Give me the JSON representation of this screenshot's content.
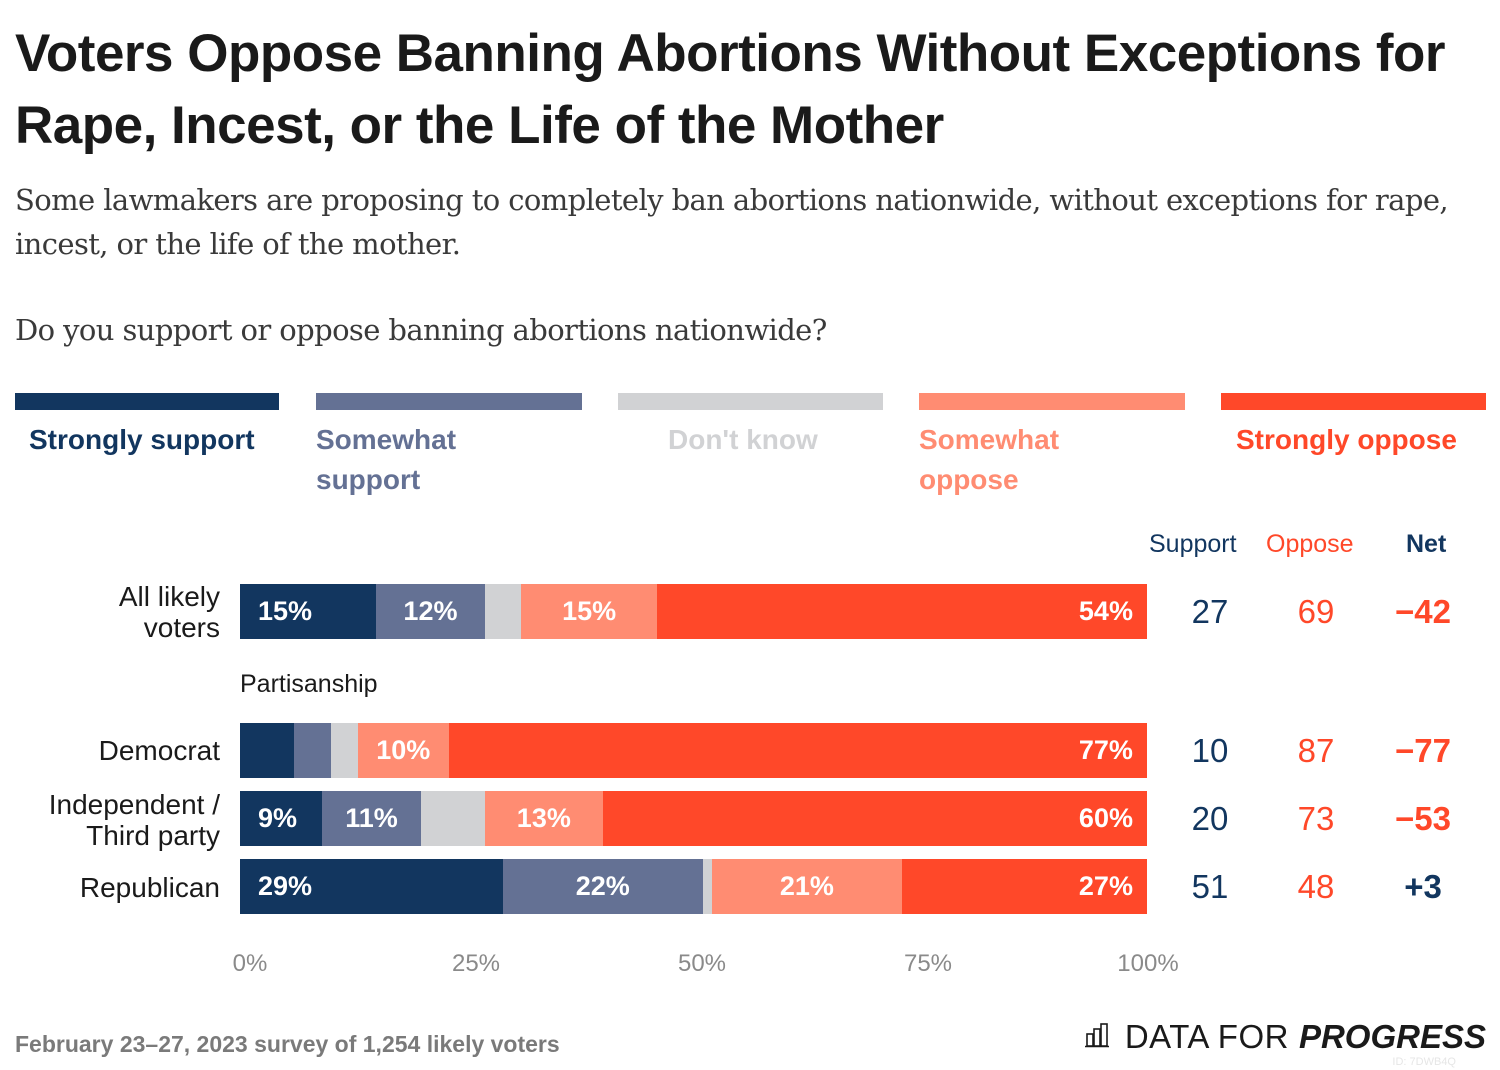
{
  "header": {
    "title": "Voters Oppose Banning Abortions Without Exceptions for Rape, Incest, or the Life of the Mother",
    "subtitle": "Some lawmakers are proposing to completely ban abortions nationwide, without exceptions for rape, incest, or the life of the mother.",
    "question": "Do you support or oppose banning abortions nationwide?"
  },
  "colors": {
    "strongly_support": "#12365f",
    "somewhat_support": "#647194",
    "dont_know": "#d1d2d4",
    "somewhat_oppose": "#ff8c72",
    "strongly_oppose": "#ff4829",
    "support_text": "#12365f",
    "oppose_text": "#ff4829"
  },
  "legend": [
    {
      "label": "Strongly support",
      "color": "#12365f"
    },
    {
      "label": "Somewhat support",
      "color": "#647194"
    },
    {
      "label": "Don't know",
      "color": "#d1d2d4"
    },
    {
      "label": "Somewhat oppose",
      "color": "#ff8c72"
    },
    {
      "label": "Strongly oppose",
      "color": "#ff4829"
    }
  ],
  "columns": {
    "support": "Support",
    "oppose": "Oppose",
    "net": "Net"
  },
  "group_label": "Partisanship",
  "chart_data": {
    "type": "bar",
    "orientation": "horizontal",
    "stacked": true,
    "title": "Voters Oppose Banning Abortions Without Exceptions for Rape, Incest, or the Life of the Mother",
    "categories": [
      "All likely voters",
      "Democrat",
      "Independent / Third party",
      "Republican"
    ],
    "series": [
      {
        "name": "Strongly support",
        "values": [
          15,
          6,
          9,
          29
        ]
      },
      {
        "name": "Somewhat support",
        "values": [
          12,
          4,
          11,
          22
        ]
      },
      {
        "name": "Don't know",
        "values": [
          4,
          3,
          7,
          1
        ]
      },
      {
        "name": "Somewhat oppose",
        "values": [
          15,
          10,
          13,
          21
        ]
      },
      {
        "name": "Strongly oppose",
        "values": [
          54,
          77,
          60,
          27
        ]
      }
    ],
    "segment_labels": [
      [
        "15%",
        "12%",
        "",
        "15%",
        "54%"
      ],
      [
        "",
        "",
        "",
        "10%",
        "77%"
      ],
      [
        "9%",
        "11%",
        "",
        "13%",
        "60%"
      ],
      [
        "29%",
        "22%",
        "",
        "21%",
        "27%"
      ]
    ],
    "summary": [
      {
        "support": "27",
        "oppose": "69",
        "net": "−42",
        "net_sign": "negative"
      },
      {
        "support": "10",
        "oppose": "87",
        "net": "−77",
        "net_sign": "negative"
      },
      {
        "support": "20",
        "oppose": "73",
        "net": "−53",
        "net_sign": "negative"
      },
      {
        "support": "51",
        "oppose": "48",
        "net": "+3",
        "net_sign": "positive"
      }
    ],
    "xlim": [
      0,
      100
    ],
    "xticks": [
      "0%",
      "25%",
      "50%",
      "75%",
      "100%"
    ],
    "xlabel": "",
    "ylabel": "",
    "legend_position": "top",
    "grid": false
  },
  "rows": [
    {
      "label_lines": [
        "All likely",
        "voters"
      ]
    },
    {
      "label_lines": [
        "Democrat"
      ]
    },
    {
      "label_lines": [
        "Independent /",
        "Third party"
      ]
    },
    {
      "label_lines": [
        "Republican"
      ]
    }
  ],
  "footer": {
    "note": "February 23–27, 2023 survey of 1,254 likely voters",
    "brand_light": "DATA FOR",
    "brand_bold": "PROGRESS",
    "id": "ID: 7DWB4Q"
  }
}
